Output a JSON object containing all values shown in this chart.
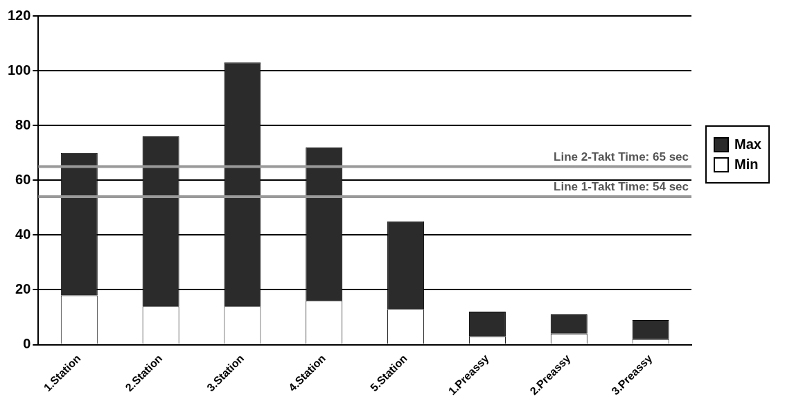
{
  "chart_data": {
    "type": "bar",
    "stacked": true,
    "categories": [
      "1.Station",
      "2.Station",
      "3.Station",
      "4.Station",
      "5.Station",
      "1.Preassy",
      "2.Preassy",
      "3.Preassy"
    ],
    "series": [
      {
        "name": "Min",
        "color": "#ffffff",
        "values": [
          18,
          14,
          14,
          16,
          13,
          3,
          4,
          2
        ]
      },
      {
        "name": "Max",
        "color": "#2b2b2b",
        "values": [
          52,
          62,
          89,
          56,
          32,
          9,
          7,
          7
        ]
      }
    ],
    "ylim": [
      0,
      120
    ],
    "yticks": [
      0,
      20,
      40,
      60,
      80,
      100,
      120
    ],
    "grid": "y",
    "legend": "right",
    "ref_lines": [
      {
        "axis": "y",
        "value": 65,
        "label": "Line 2-Takt Time: 65 sec",
        "color": "#999999"
      },
      {
        "axis": "y",
        "value": 54,
        "label": "Line 1-Takt Time: 54 sec",
        "color": "#999999"
      }
    ]
  }
}
